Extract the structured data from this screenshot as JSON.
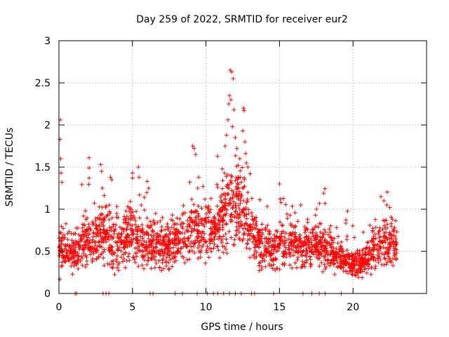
{
  "chart_data": {
    "type": "scatter",
    "title": "Day 259 of 2022, SRMTID for receiver eur2",
    "xlabel": "GPS time / hours",
    "ylabel": "SRMTID / TECUs",
    "xlim": [
      0,
      25
    ],
    "ylim": [
      0,
      3
    ],
    "xticks": [
      0,
      5,
      10,
      15,
      20
    ],
    "xtick_labels": [
      "0",
      "5",
      "10",
      "15",
      "20"
    ],
    "yticks": [
      0,
      0.5,
      1,
      1.5,
      2,
      2.5,
      3
    ],
    "ytick_labels": [
      "0",
      "0.5",
      "1",
      "1.5",
      "2",
      "2.5",
      "3"
    ],
    "grid": true,
    "legend": "none",
    "marker": "+",
    "color": "#ff0000",
    "profile": [
      {
        "t": 0.0,
        "mean": 0.55,
        "spread": 0.22
      },
      {
        "t": 1.0,
        "mean": 0.48,
        "spread": 0.2
      },
      {
        "t": 2.0,
        "mean": 0.62,
        "spread": 0.24
      },
      {
        "t": 3.0,
        "mean": 0.66,
        "spread": 0.26
      },
      {
        "t": 4.0,
        "mean": 0.6,
        "spread": 0.25
      },
      {
        "t": 5.0,
        "mean": 0.72,
        "spread": 0.26
      },
      {
        "t": 6.0,
        "mean": 0.6,
        "spread": 0.22
      },
      {
        "t": 7.0,
        "mean": 0.55,
        "spread": 0.2
      },
      {
        "t": 8.0,
        "mean": 0.62,
        "spread": 0.22
      },
      {
        "t": 9.0,
        "mean": 0.75,
        "spread": 0.26
      },
      {
        "t": 10.0,
        "mean": 0.72,
        "spread": 0.25
      },
      {
        "t": 11.0,
        "mean": 0.85,
        "spread": 0.3
      },
      {
        "t": 11.8,
        "mean": 1.15,
        "spread": 0.45
      },
      {
        "t": 12.5,
        "mean": 0.95,
        "spread": 0.35
      },
      {
        "t": 13.5,
        "mean": 0.6,
        "spread": 0.22
      },
      {
        "t": 14.5,
        "mean": 0.5,
        "spread": 0.18
      },
      {
        "t": 15.5,
        "mean": 0.62,
        "spread": 0.22
      },
      {
        "t": 16.5,
        "mean": 0.55,
        "spread": 0.2
      },
      {
        "t": 17.5,
        "mean": 0.58,
        "spread": 0.22
      },
      {
        "t": 18.5,
        "mean": 0.5,
        "spread": 0.18
      },
      {
        "t": 19.5,
        "mean": 0.38,
        "spread": 0.12
      },
      {
        "t": 20.5,
        "mean": 0.35,
        "spread": 0.12
      },
      {
        "t": 21.5,
        "mean": 0.55,
        "spread": 0.22
      },
      {
        "t": 22.5,
        "mean": 0.6,
        "spread": 0.25
      },
      {
        "t": 23.0,
        "mean": 0.5,
        "spread": 0.2
      }
    ],
    "peaks": [
      [
        0.1,
        2.06
      ],
      [
        0.08,
        1.83
      ],
      [
        0.12,
        1.6
      ],
      [
        0.15,
        1.43
      ],
      [
        0.2,
        1.32
      ],
      [
        2.05,
        1.61
      ],
      [
        2.05,
        1.49
      ],
      [
        2.05,
        1.37
      ],
      [
        2.85,
        1.53
      ],
      [
        2.9,
        1.45
      ],
      [
        2.95,
        1.25
      ],
      [
        3.5,
        1.38
      ],
      [
        3.6,
        1.35
      ],
      [
        5.0,
        1.43
      ],
      [
        5.0,
        1.37
      ],
      [
        5.4,
        1.5
      ],
      [
        5.45,
        1.38
      ],
      [
        6.0,
        1.33
      ],
      [
        6.1,
        1.25
      ],
      [
        8.9,
        1.32
      ],
      [
        9.1,
        1.75
      ],
      [
        9.2,
        1.72
      ],
      [
        9.3,
        1.65
      ],
      [
        9.5,
        1.38
      ],
      [
        9.8,
        1.27
      ],
      [
        11.1,
        1.48
      ],
      [
        11.3,
        1.75
      ],
      [
        11.4,
        1.88
      ],
      [
        11.5,
        2.06
      ],
      [
        11.55,
        2.25
      ],
      [
        11.6,
        2.35
      ],
      [
        11.65,
        2.65
      ],
      [
        11.75,
        2.63
      ],
      [
        11.85,
        2.55
      ],
      [
        11.7,
        2.3
      ],
      [
        11.9,
        2.18
      ],
      [
        11.8,
        1.98
      ],
      [
        12.0,
        1.85
      ],
      [
        12.1,
        1.72
      ],
      [
        12.3,
        1.6
      ],
      [
        12.5,
        1.93
      ],
      [
        12.55,
        2.2
      ],
      [
        12.6,
        2.17
      ],
      [
        12.65,
        1.8
      ],
      [
        12.7,
        1.66
      ],
      [
        12.75,
        1.55
      ],
      [
        12.85,
        1.5
      ],
      [
        13.0,
        1.42
      ],
      [
        12.2,
        1.38
      ],
      [
        12.4,
        1.32
      ],
      [
        15.0,
        1.3
      ],
      [
        15.05,
        1.12
      ],
      [
        15.1,
        1.08
      ],
      [
        18.0,
        1.19
      ],
      [
        18.1,
        1.07
      ],
      [
        21.9,
        1.15
      ],
      [
        22.1,
        1.1
      ],
      [
        22.3,
        1.05
      ],
      [
        22.5,
        1.02
      ]
    ],
    "baseline_ticks": [
      1.1,
      1.2,
      3.0,
      3.2,
      3.4,
      6.2,
      6.4,
      7.9,
      8.4,
      9.4,
      10.1,
      10.5,
      10.8,
      11.2,
      11.6,
      12.0,
      12.4,
      13.1,
      13.3,
      14.6,
      16.6,
      17.2,
      17.7,
      18.1,
      19.2
    ]
  }
}
